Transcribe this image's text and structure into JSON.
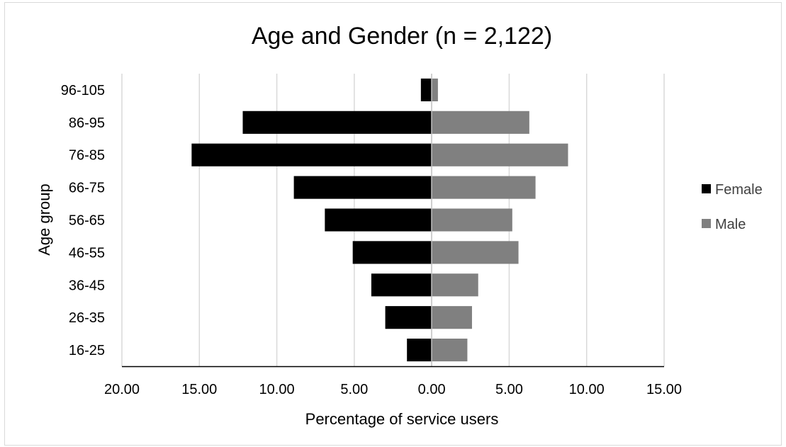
{
  "chart_data": {
    "type": "bar",
    "orientation": "horizontal",
    "title": "Age and Gender (n = 2,122)",
    "xlabel": "Percentage of service users",
    "ylabel": "Age group",
    "categories": [
      "16-25",
      "26-35",
      "36-45",
      "46-55",
      "56-65",
      "66-75",
      "76-85",
      "86-95",
      "96-105"
    ],
    "series": [
      {
        "name": "Female",
        "color": "#000000",
        "values": [
          1.6,
          3.0,
          3.9,
          5.1,
          6.9,
          8.9,
          15.5,
          12.2,
          0.7
        ]
      },
      {
        "name": "Male",
        "color": "#808080",
        "values": [
          2.3,
          2.6,
          3.0,
          5.6,
          5.2,
          6.7,
          8.8,
          6.3,
          0.4
        ]
      }
    ],
    "xlim": [
      -20,
      15
    ],
    "xticks": [
      -20,
      -15,
      -10,
      -5,
      0,
      5,
      10,
      15
    ],
    "xtick_labels": [
      "20.00",
      "15.00",
      "10.00",
      "5.00",
      "0.00",
      "5.00",
      "10.00",
      "15.00"
    ],
    "grid": true,
    "legend_position": "right"
  }
}
